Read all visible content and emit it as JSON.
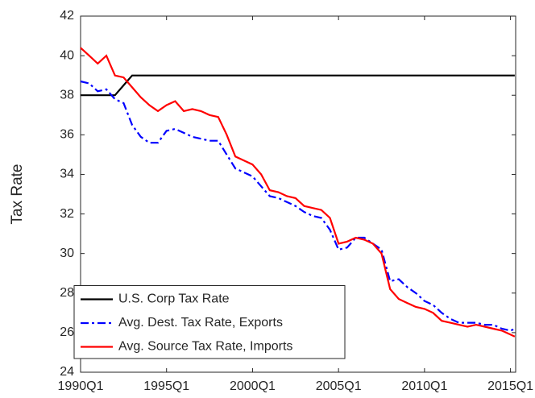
{
  "chart_data": {
    "type": "line",
    "y_label": "Tax Rate",
    "x": [
      1990,
      1990.5,
      1991,
      1991.5,
      1992,
      1992.5,
      1993,
      1993.5,
      1994,
      1994.5,
      1995,
      1995.5,
      1996,
      1996.5,
      1997,
      1997.5,
      1998,
      1998.5,
      1999,
      1999.5,
      2000,
      2000.5,
      2001,
      2001.5,
      2002,
      2002.5,
      2003,
      2003.5,
      2004,
      2004.5,
      2005,
      2005.5,
      2006,
      2006.5,
      2007,
      2007.5,
      2008,
      2008.5,
      2009,
      2009.5,
      2010,
      2010.5,
      2011,
      2011.5,
      2012,
      2012.5,
      2013,
      2013.5,
      2014,
      2014.5,
      2015,
      2015.25
    ],
    "series": [
      {
        "name": "U.S. Corp Tax Rate",
        "color": "#000000",
        "style": "solid",
        "values": [
          38,
          38,
          38,
          38,
          38,
          38.5,
          39,
          39,
          39,
          39,
          39,
          39,
          39,
          39,
          39,
          39,
          39,
          39,
          39,
          39,
          39,
          39,
          39,
          39,
          39,
          39,
          39,
          39,
          39,
          39,
          39,
          39,
          39,
          39,
          39,
          39,
          39,
          39,
          39,
          39,
          39,
          39,
          39,
          39,
          39,
          39,
          39,
          39,
          39,
          39,
          39,
          39
        ]
      },
      {
        "name": "Avg. Dest. Tax Rate, Exports",
        "color": "#0000ff",
        "style": "dashdot",
        "values": [
          38.7,
          38.6,
          38.2,
          38.3,
          37.8,
          37.6,
          36.5,
          35.9,
          35.6,
          35.6,
          36.2,
          36.3,
          36.1,
          35.9,
          35.8,
          35.7,
          35.7,
          35.0,
          34.3,
          34.1,
          33.9,
          33.4,
          32.9,
          32.8,
          32.6,
          32.4,
          32.1,
          31.9,
          31.8,
          31.2,
          30.2,
          30.3,
          30.8,
          30.8,
          30.5,
          30.2,
          28.6,
          28.7,
          28.3,
          28.0,
          27.6,
          27.4,
          27.0,
          26.7,
          26.5,
          26.5,
          26.5,
          26.4,
          26.4,
          26.2,
          26.1,
          26.2
        ]
      },
      {
        "name": "Avg. Source Tax Rate, Imports",
        "color": "#ff0000",
        "style": "solid",
        "values": [
          40.4,
          40.0,
          39.6,
          40.0,
          39.0,
          38.9,
          38.4,
          37.9,
          37.5,
          37.2,
          37.5,
          37.7,
          37.2,
          37.3,
          37.2,
          37.0,
          36.9,
          36.0,
          34.9,
          34.7,
          34.5,
          34.0,
          33.2,
          33.1,
          32.9,
          32.8,
          32.4,
          32.3,
          32.2,
          31.8,
          30.5,
          30.6,
          30.8,
          30.7,
          30.5,
          30.0,
          28.2,
          27.7,
          27.5,
          27.3,
          27.2,
          27.0,
          26.6,
          26.5,
          26.4,
          26.3,
          26.4,
          26.3,
          26.2,
          26.1,
          25.9,
          25.8
        ]
      }
    ],
    "xlim": [
      1990,
      2015.3
    ],
    "xticks": [
      {
        "value": 1990,
        "label": "1990Q1"
      },
      {
        "value": 1995,
        "label": "1995Q1"
      },
      {
        "value": 2000,
        "label": "2000Q1"
      },
      {
        "value": 2005,
        "label": "2005Q1"
      },
      {
        "value": 2010,
        "label": "2010Q1"
      },
      {
        "value": 2015,
        "label": "2015Q1"
      }
    ],
    "ylim": [
      24,
      42
    ],
    "yticks": [
      24,
      26,
      28,
      30,
      32,
      34,
      36,
      38,
      40,
      42
    ],
    "grid": false,
    "legend": "lower left"
  }
}
